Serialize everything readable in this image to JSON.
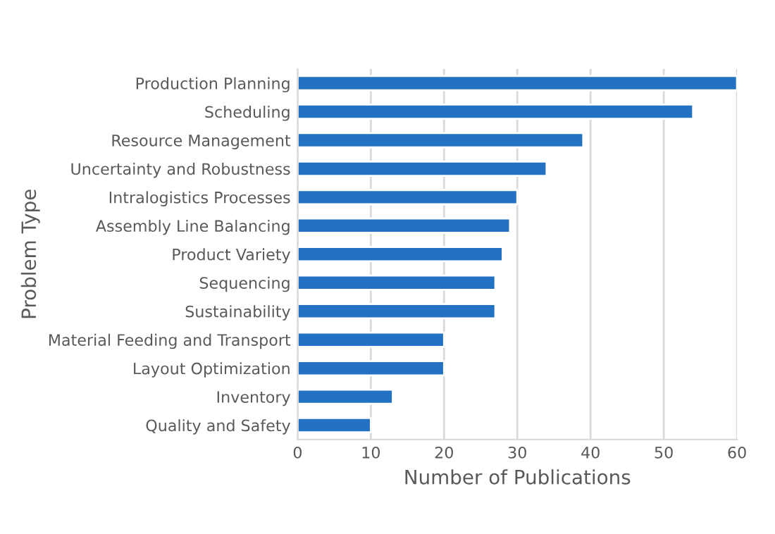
{
  "chart_data": {
    "type": "bar",
    "orientation": "horizontal",
    "xlabel": "Number of Publications",
    "ylabel": "Problem Type",
    "categories": [
      "Production Planning",
      "Scheduling",
      "Resource Management",
      "Uncertainty and Robustness",
      "Intralogistics Processes",
      "Assembly Line Balancing",
      "Product Variety",
      "Sequencing",
      "Sustainability",
      "Material Feeding and Transport",
      "Layout Optimization",
      "Inventory",
      "Quality and Safety"
    ],
    "values": [
      60,
      54,
      39,
      34,
      30,
      29,
      28,
      27,
      27,
      20,
      20,
      13,
      10
    ],
    "color": "#2271c3",
    "xlim": [
      0,
      60
    ],
    "xticks": [
      0,
      10,
      20,
      30,
      40,
      50,
      60
    ],
    "grid": "x"
  }
}
